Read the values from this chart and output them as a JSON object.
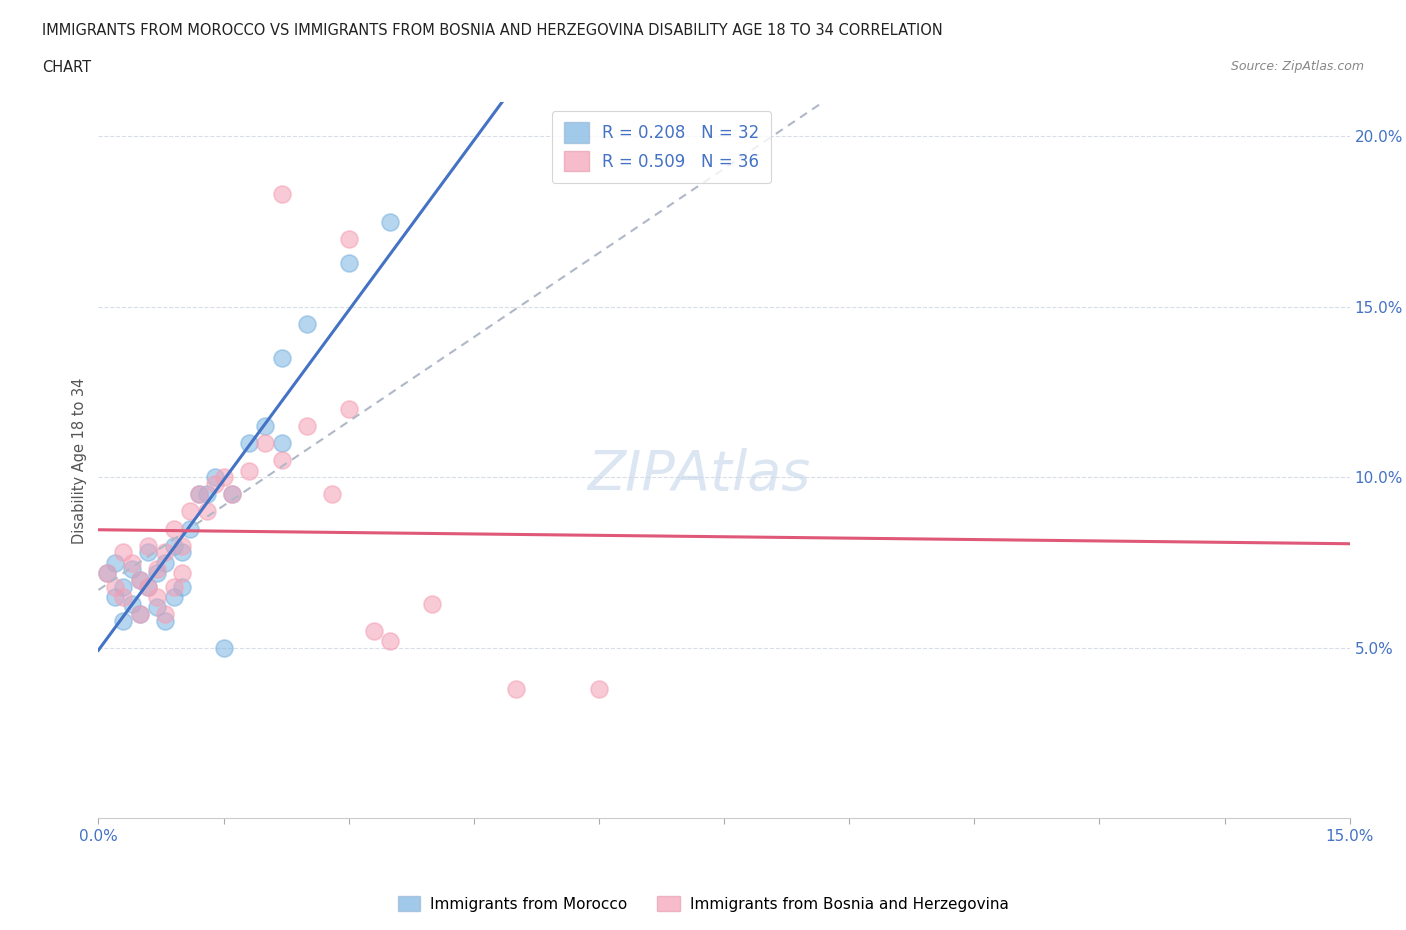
{
  "title_line1": "IMMIGRANTS FROM MOROCCO VS IMMIGRANTS FROM BOSNIA AND HERZEGOVINA DISABILITY AGE 18 TO 34 CORRELATION",
  "title_line2": "CHART",
  "source": "Source: ZipAtlas.com",
  "ylabel": "Disability Age 18 to 34",
  "xlim": [
    0.0,
    0.15
  ],
  "ylim": [
    0.0,
    0.21
  ],
  "xticks": [
    0.0,
    0.015,
    0.03,
    0.045,
    0.06,
    0.075,
    0.09,
    0.105,
    0.12,
    0.135,
    0.15
  ],
  "xtick_labels_ends": [
    "0.0%",
    "",
    "",
    "",
    "",
    "",
    "",
    "",
    "",
    "",
    "15.0%"
  ],
  "yticks": [
    0.05,
    0.1,
    0.15,
    0.2
  ],
  "ytick_labels": [
    "5.0%",
    "10.0%",
    "15.0%",
    "20.0%"
  ],
  "legend_r1": "R = 0.208",
  "legend_n1": "N = 32",
  "legend_r2": "R = 0.509",
  "legend_n2": "N = 36",
  "color_morocco": "#7ab3e0",
  "color_bosnia": "#f4a0b5",
  "color_blue_line": "#4472c4",
  "color_pink_line": "#e05878",
  "color_text_blue": "#4472c4",
  "color_dashed_line": "#b0b8c8",
  "background_color": "#ffffff",
  "grid_color": "#d8dde8",
  "morocco_x": [
    0.001,
    0.002,
    0.002,
    0.003,
    0.003,
    0.004,
    0.004,
    0.005,
    0.005,
    0.006,
    0.006,
    0.007,
    0.007,
    0.008,
    0.008,
    0.009,
    0.009,
    0.01,
    0.01,
    0.011,
    0.012,
    0.013,
    0.014,
    0.016,
    0.018,
    0.02,
    0.022,
    0.025,
    0.03,
    0.035,
    0.022,
    0.015
  ],
  "morocco_y": [
    0.072,
    0.065,
    0.075,
    0.068,
    0.058,
    0.073,
    0.063,
    0.06,
    0.07,
    0.068,
    0.078,
    0.072,
    0.062,
    0.075,
    0.058,
    0.08,
    0.065,
    0.078,
    0.068,
    0.085,
    0.095,
    0.095,
    0.1,
    0.095,
    0.11,
    0.115,
    0.11,
    0.145,
    0.163,
    0.175,
    0.135,
    0.05
  ],
  "bosnia_x": [
    0.001,
    0.002,
    0.003,
    0.003,
    0.004,
    0.005,
    0.005,
    0.006,
    0.006,
    0.007,
    0.007,
    0.008,
    0.008,
    0.009,
    0.009,
    0.01,
    0.01,
    0.011,
    0.012,
    0.013,
    0.014,
    0.015,
    0.016,
    0.018,
    0.02,
    0.022,
    0.025,
    0.028,
    0.03,
    0.033,
    0.022,
    0.03,
    0.035,
    0.04,
    0.05,
    0.06
  ],
  "bosnia_y": [
    0.072,
    0.068,
    0.078,
    0.065,
    0.075,
    0.07,
    0.06,
    0.08,
    0.068,
    0.073,
    0.065,
    0.078,
    0.06,
    0.085,
    0.068,
    0.08,
    0.072,
    0.09,
    0.095,
    0.09,
    0.098,
    0.1,
    0.095,
    0.102,
    0.11,
    0.105,
    0.115,
    0.095,
    0.12,
    0.055,
    0.183,
    0.17,
    0.052,
    0.063,
    0.038,
    0.038
  ],
  "watermark_text": "ZIPAtlas",
  "watermark_color": "#c5d5ea",
  "legend_label1": "Immigrants from Morocco",
  "legend_label2": "Immigrants from Bosnia and Herzegovina"
}
